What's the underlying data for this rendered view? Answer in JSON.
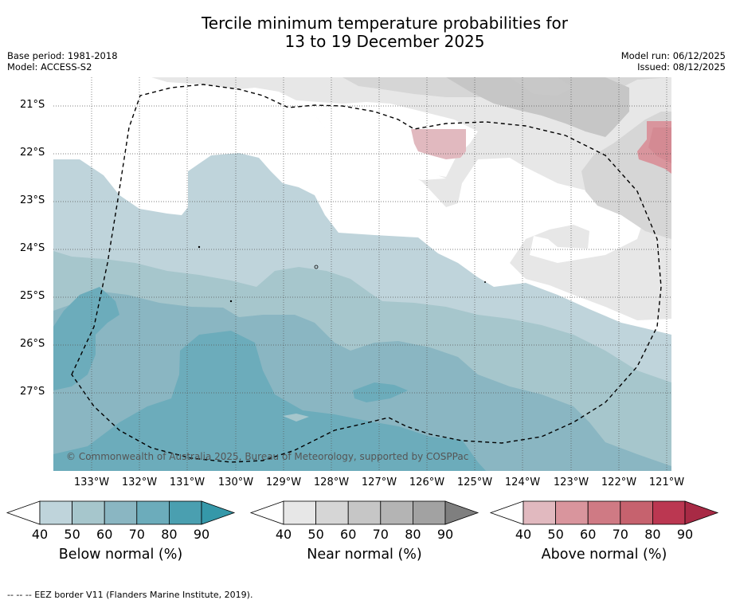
{
  "title": {
    "line1": "Tercile minimum temperature probabilities for",
    "line2": "13 to 19 December 2025"
  },
  "meta_left": {
    "base_period": "Base period: 1981-2018",
    "model": "Model: ACCESS-S2"
  },
  "meta_right": {
    "model_run": "Model run: 06/12/2025",
    "issued": "Issued: 08/12/2025"
  },
  "lat_labels": [
    "21°S",
    "22°S",
    "23°S",
    "24°S",
    "25°S",
    "26°S",
    "27°S"
  ],
  "lon_labels": [
    "133°W",
    "132°W",
    "131°W",
    "130°W",
    "129°W",
    "128°W",
    "127°W",
    "126°W",
    "125°W",
    "124°W",
    "123°W",
    "122°W",
    "121°W"
  ],
  "copyright": "© Commonwealth of Australia 2025, Bureau of Meteorology, supported by COSPPac",
  "colorbars": [
    {
      "label": "Below normal (%)",
      "ticks": [
        "40",
        "50",
        "60",
        "70",
        "80",
        "90"
      ],
      "colors": [
        "#bfd4db",
        "#a6c6cc",
        "#8ab6c2",
        "#6cacbb",
        "#4a9fb0",
        "#3598a9"
      ]
    },
    {
      "label": "Near normal (%)",
      "ticks": [
        "40",
        "50",
        "60",
        "70",
        "80",
        "90"
      ],
      "colors": [
        "#e7e7e7",
        "#d6d6d6",
        "#c6c6c6",
        "#b4b4b4",
        "#a2a2a2",
        "#7f7f7f"
      ]
    },
    {
      "label": "Above normal (%)",
      "ticks": [
        "40",
        "50",
        "60",
        "70",
        "80",
        "90"
      ],
      "colors": [
        "#e1b9bf",
        "#d9959d",
        "#cf7a84",
        "#c6626e",
        "#bb3751",
        "#a82a45"
      ]
    }
  ],
  "footer": "--  --  -- EEZ border V11 (Flanders Marine Institute, 2019)."
}
